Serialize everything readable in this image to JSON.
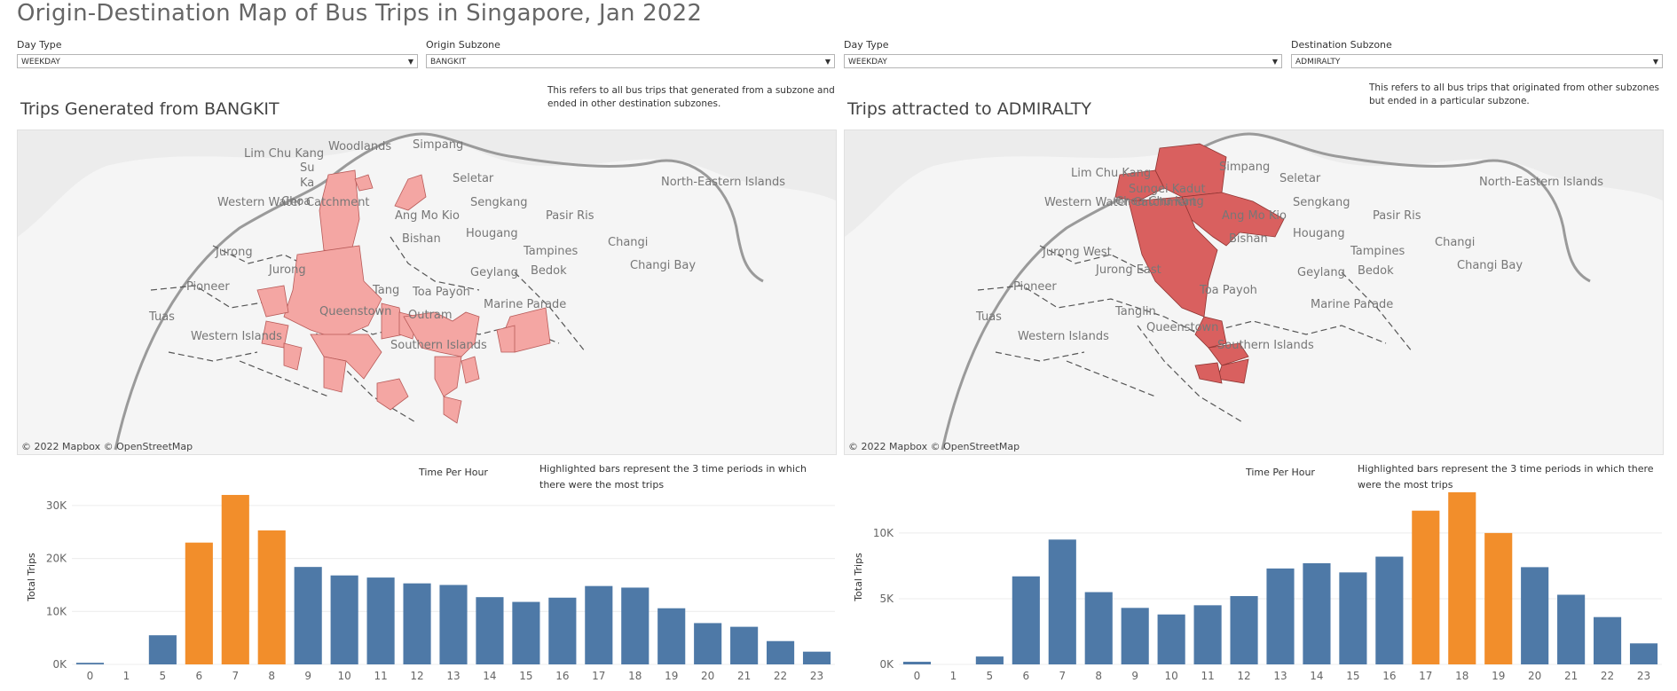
{
  "title": "Origin-Destination Map of Bus Trips in Singapore, Jan 2022",
  "colors": {
    "bar_default": "#4e79a7",
    "bar_highlight": "#f28e2b",
    "origin_fill": "#f4a6a3",
    "dest_fill": "#d9605f",
    "map_bg": "#ececec",
    "land": "#f5f5f5"
  },
  "left": {
    "filters": [
      {
        "label": "Day Type",
        "value": "WEEKDAY"
      },
      {
        "label": "Origin Subzone",
        "value": "BANGKIT"
      }
    ],
    "panel_title": "Trips Generated from BANGKIT",
    "note": "This refers to all bus trips that generated from a subzone and ended in other destination subzones.",
    "map_labels": [
      "Woodlands",
      "Simpang",
      "Lim Chu Kang",
      "Su",
      "Ka",
      "Seletar",
      "North-Eastern Islands",
      "Western Water Catchment",
      "Choa",
      "Ang Mo Kio",
      "Sengkang",
      "Pasir Ris",
      "Bishan",
      "Hougang",
      "Jurong",
      "Jurong",
      "Tampines",
      "Changi",
      "Changi Bay",
      "Pioneer",
      "Tang",
      "Toa Payoh",
      "Geylang",
      "Bedok",
      "Marine Parade",
      "Queenstown",
      "Outram",
      "Tuas",
      "Western Islands",
      "Southern Islands"
    ],
    "credit": "© 2022 Mapbox  © OpenStreetMap",
    "chart_title": "Time Per Hour",
    "chart_note": "Highlighted bars represent the 3 time periods in which there were the most trips"
  },
  "right": {
    "filters": [
      {
        "label": "Day  Type",
        "value": "WEEKDAY"
      },
      {
        "label": "Destination  Subzone",
        "value": "ADMIRALTY"
      }
    ],
    "panel_title": "Trips attracted to ADMIRALTY",
    "note": "This refers to all bus trips that originated from other subzones but ended in a particular subzone.",
    "map_labels": [
      "Simpang",
      "Lim Chu Kang",
      "Sungei Kadut",
      "Seletar",
      "North-Eastern Islands",
      "Western Water Catchment",
      "Choa Chu Kang",
      "Ang Mo Kio",
      "Sengkang",
      "Pasir Ris",
      "Bishan",
      "Hougang",
      "Jurong West",
      "Jurong East",
      "Tampines",
      "Changi",
      "Changi Bay",
      "Pioneer",
      "Toa Payoh",
      "Geylang",
      "Bedok",
      "Marine Parade",
      "Tanglin",
      "Queenstown",
      "Tuas",
      "Western Islands",
      "Southern Islands"
    ],
    "credit": "© 2022 Mapbox  © OpenStreetMap",
    "chart_title": "Time Per Hour",
    "chart_note": "Highlighted bars represent the 3 time periods in which there were the most trips"
  },
  "chart_data": [
    {
      "type": "bar",
      "title": "Time Per Hour",
      "xlabel": "",
      "ylabel": "Total Trips",
      "categories": [
        "0",
        "1",
        "5",
        "6",
        "7",
        "8",
        "9",
        "10",
        "11",
        "12",
        "13",
        "14",
        "15",
        "16",
        "17",
        "18",
        "19",
        "20",
        "21",
        "22",
        "23"
      ],
      "values": [
        300,
        0,
        5500,
        23000,
        32000,
        25300,
        18400,
        16800,
        16400,
        15300,
        15000,
        12700,
        11800,
        12600,
        14800,
        14500,
        10600,
        7800,
        7100,
        4400,
        2400
      ],
      "highlighted": [
        "6",
        "7",
        "8"
      ],
      "yticks": [
        "0K",
        "10K",
        "20K",
        "30K"
      ],
      "ytick_values": [
        0,
        10000,
        20000,
        30000
      ],
      "ylim": [
        0,
        33000
      ],
      "grid": true
    },
    {
      "type": "bar",
      "title": "Time Per Hour",
      "xlabel": "",
      "ylabel": "Total Trips",
      "categories": [
        "0",
        "1",
        "5",
        "6",
        "7",
        "8",
        "9",
        "10",
        "11",
        "12",
        "13",
        "14",
        "15",
        "16",
        "17",
        "18",
        "19",
        "20",
        "21",
        "22",
        "23"
      ],
      "values": [
        200,
        0,
        600,
        6700,
        9500,
        5500,
        4300,
        3800,
        4500,
        5200,
        7300,
        7700,
        7000,
        8200,
        11700,
        13100,
        10000,
        7400,
        5300,
        3600,
        1600
      ],
      "highlighted": [
        "17",
        "18",
        "19"
      ],
      "yticks": [
        "0K",
        "5K",
        "10K"
      ],
      "ytick_values": [
        0,
        5000,
        10000
      ],
      "ylim": [
        0,
        13300
      ],
      "grid": true
    }
  ]
}
